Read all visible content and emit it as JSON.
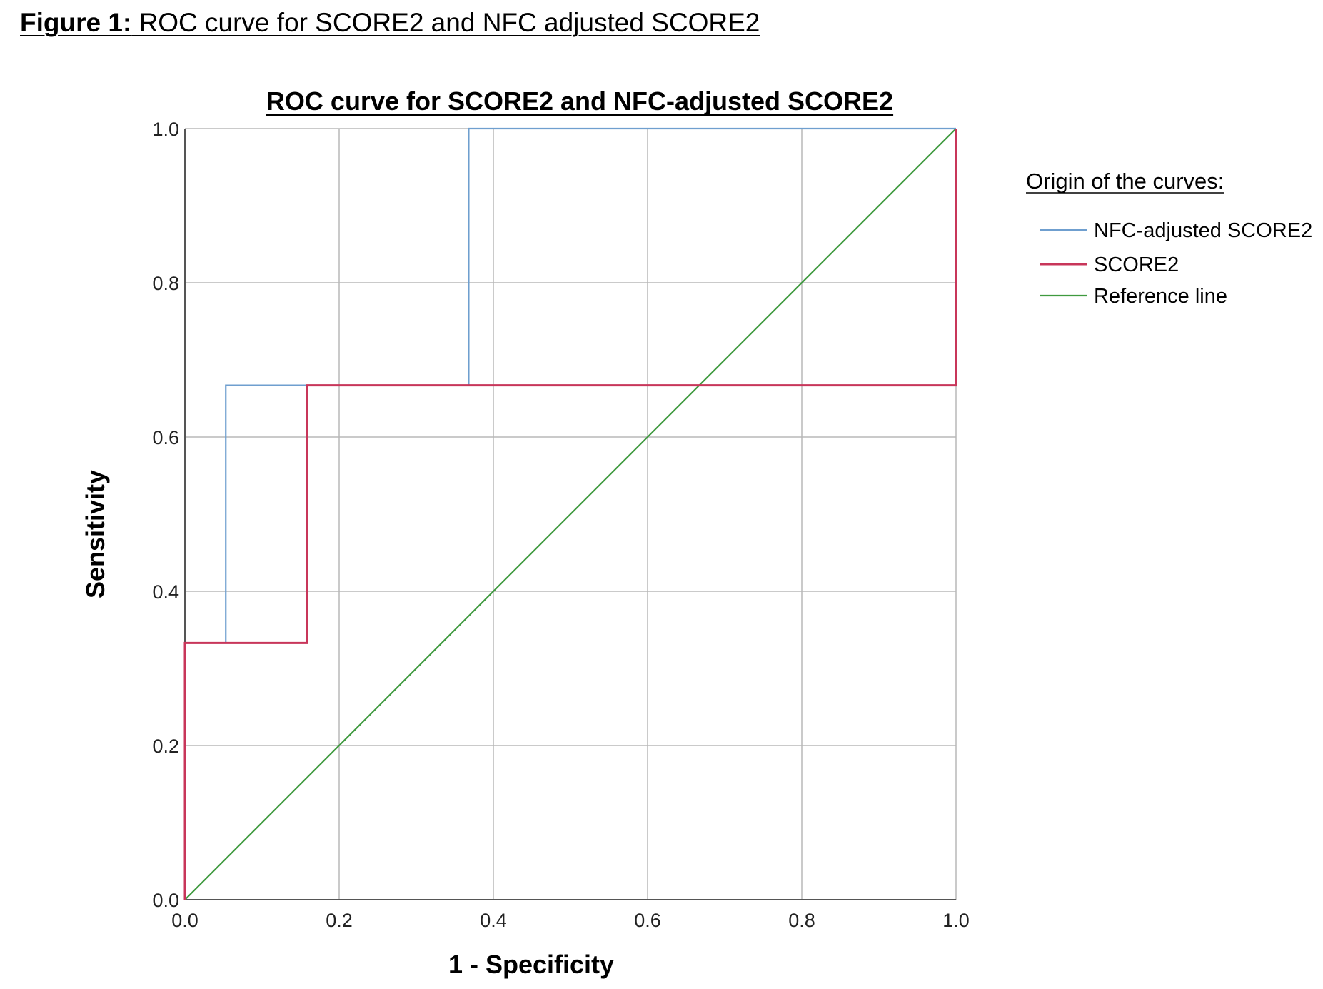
{
  "caption": {
    "label": "Figure 1:",
    "text": "ROC curve for SCORE2 and NFC adjusted SCORE2"
  },
  "chart_data": {
    "type": "line",
    "title": "ROC curve for SCORE2 and NFC-adjusted SCORE2",
    "xlabel": "1 - Specificity",
    "ylabel": "Sensitivity",
    "xlim": [
      0,
      1
    ],
    "ylim": [
      0,
      1
    ],
    "xticks": [
      "0.0",
      "0.2",
      "0.4",
      "0.6",
      "0.8",
      "1.0"
    ],
    "yticks": [
      "0.0",
      "0.2",
      "0.4",
      "0.6",
      "0.8",
      "1.0"
    ],
    "grid": true,
    "legend": {
      "title": "Origin of the curves:",
      "placement": "right"
    },
    "series": [
      {
        "name": "NFC-adjusted SCORE2",
        "color": "#6f9fcf",
        "x": [
          0,
          0,
          0.053,
          0.053,
          0.368,
          0.368,
          1
        ],
        "y": [
          0,
          0.333,
          0.333,
          0.667,
          0.667,
          1,
          1
        ]
      },
      {
        "name": "SCORE2",
        "color": "#c8365a",
        "x": [
          0,
          0,
          0.158,
          0.158,
          1,
          1
        ],
        "y": [
          0,
          0.333,
          0.333,
          0.667,
          0.667,
          1
        ]
      },
      {
        "name": "Reference line",
        "color": "#3f9a3f",
        "x": [
          0,
          1
        ],
        "y": [
          0,
          1
        ]
      }
    ]
  }
}
